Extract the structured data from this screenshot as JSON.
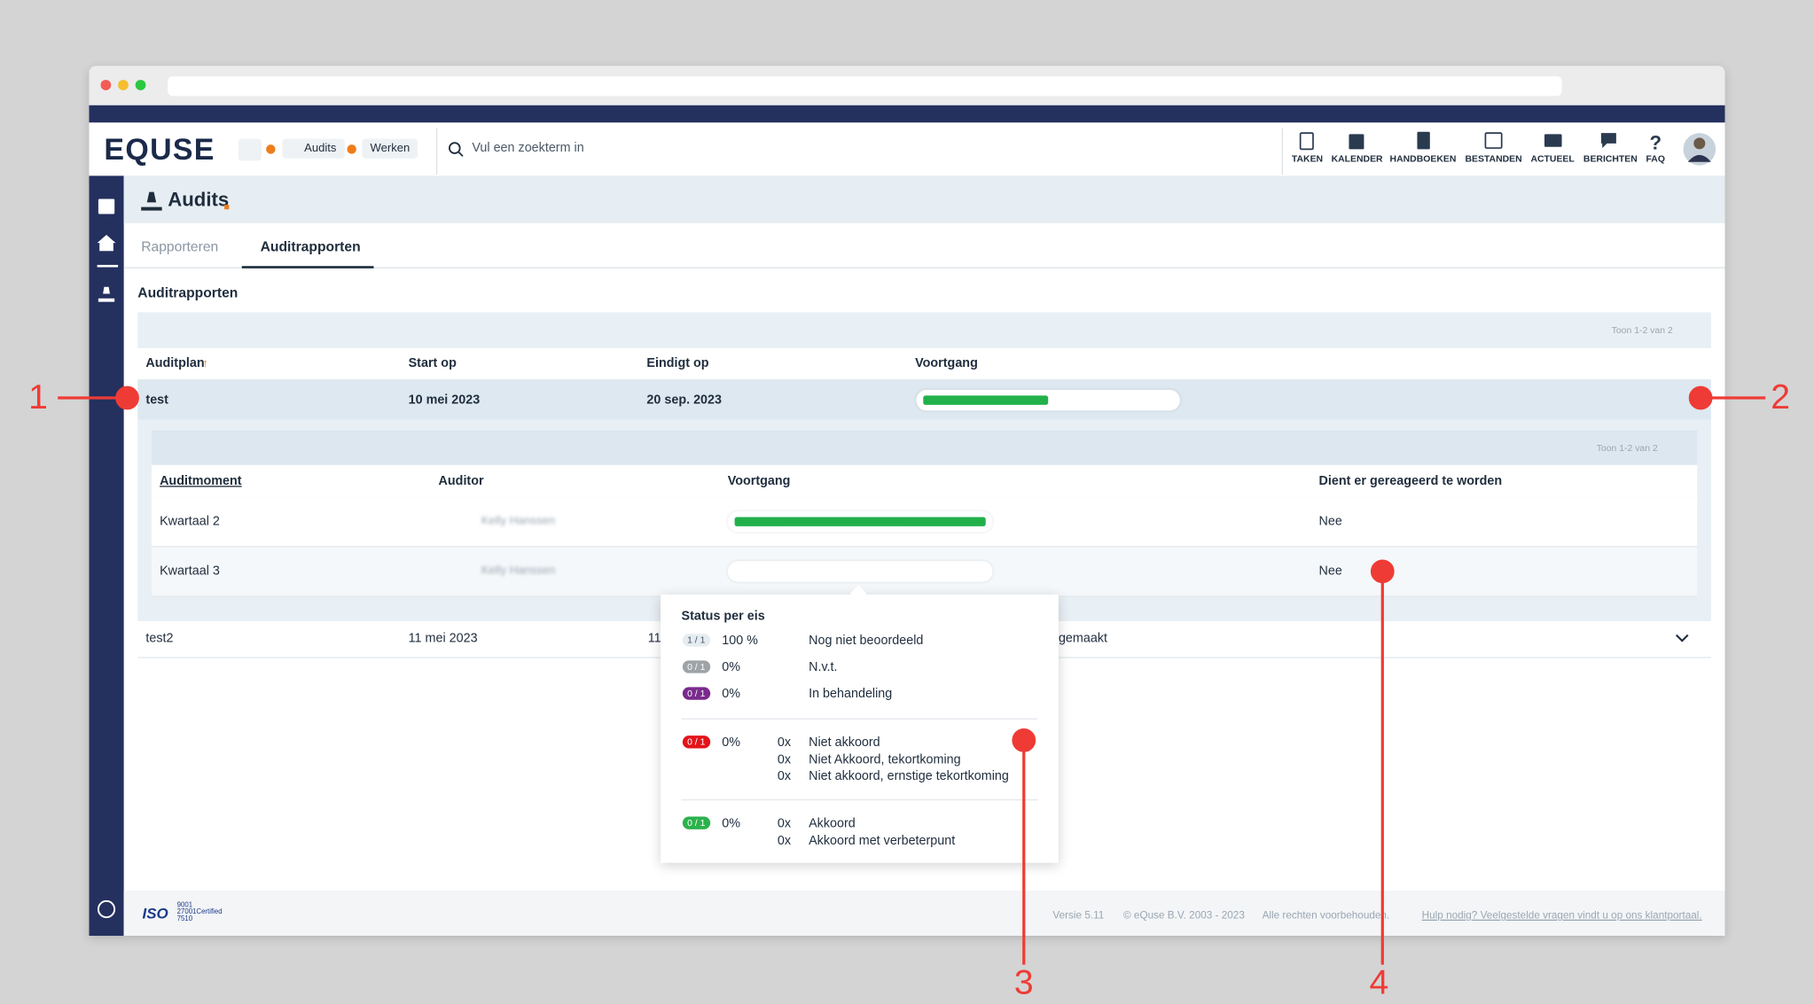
{
  "header": {
    "logo": "EQUSE",
    "breadcrumbs": [
      "Audits",
      "Werken"
    ],
    "search_placeholder": "Vul een zoekterm in",
    "nav": [
      "TAKEN",
      "KALENDER",
      "HANDBOEKEN",
      "BESTANDEN",
      "ACTUEEL",
      "BERICHTEN",
      "FAQ"
    ]
  },
  "page": {
    "title": "Audits",
    "tabs": [
      "Rapporteren",
      "Auditrapporten"
    ],
    "section": "Auditrapporten",
    "count": "Toon 1-2 van 2"
  },
  "table": {
    "columns": [
      "Auditplan",
      "Start op",
      "Eindigt op",
      "Voortgang"
    ],
    "rows": [
      {
        "name": "test",
        "start": "10 mei 2023",
        "end": "20 sep. 2023",
        "progress": 50
      },
      {
        "name": "test2",
        "start": "11 mei 2023",
        "end": "11",
        "remark": "gemaakt"
      }
    ]
  },
  "subtable": {
    "count": "Toon 1-2 van 2",
    "columns": [
      "Auditmoment",
      "Auditor",
      "Voortgang",
      "Dient er gereageerd te worden"
    ],
    "rows": [
      {
        "moment": "Kwartaal 2",
        "auditor": "Kelly Hanssen",
        "progress": 100,
        "respond": "Nee"
      },
      {
        "moment": "Kwartaal 3",
        "auditor": "Kelly Hanssen",
        "progress": 0,
        "respond": "Nee"
      }
    ]
  },
  "popup": {
    "title": "Status per eis",
    "rows": [
      {
        "badge": "1 / 1",
        "color": "#e6edf2",
        "percent": "100 %",
        "label": "Nog niet beoordeeld"
      },
      {
        "badge": "0 / 1",
        "color": "#9ea3a8",
        "percent": "0%",
        "label": "N.v.t."
      },
      {
        "badge": "0 / 1",
        "color": "#7a2a8c",
        "percent": "0%",
        "label": "In behandeling"
      },
      {
        "badge": "0 / 1",
        "color": "#e3141b",
        "percent": "0%",
        "items": [
          {
            "count": "0x",
            "label": "Niet akkoord"
          },
          {
            "count": "0x",
            "label": "Niet Akkoord, tekortkoming"
          },
          {
            "count": "0x",
            "label": "Niet akkoord, ernstige tekortkoming"
          }
        ]
      },
      {
        "badge": "0 / 1",
        "color": "#2bb24c",
        "percent": "0%",
        "items": [
          {
            "count": "0x",
            "label": "Akkoord"
          },
          {
            "count": "0x",
            "label": "Akkoord met verbeterpunt"
          }
        ]
      }
    ]
  },
  "footer": {
    "iso": "ISO",
    "iso_numbers": [
      "9001",
      "27001Certified",
      "7510"
    ],
    "version": "Versie 5.11",
    "copyright": "© eQuse B.V. 2003 - 2023",
    "rights": "Alle rechten voorbehouden.",
    "help": "Hulp nodig? Veelgestelde vragen vindt u op ons klantportaal."
  },
  "annotations": [
    "1",
    "2",
    "3",
    "4"
  ]
}
